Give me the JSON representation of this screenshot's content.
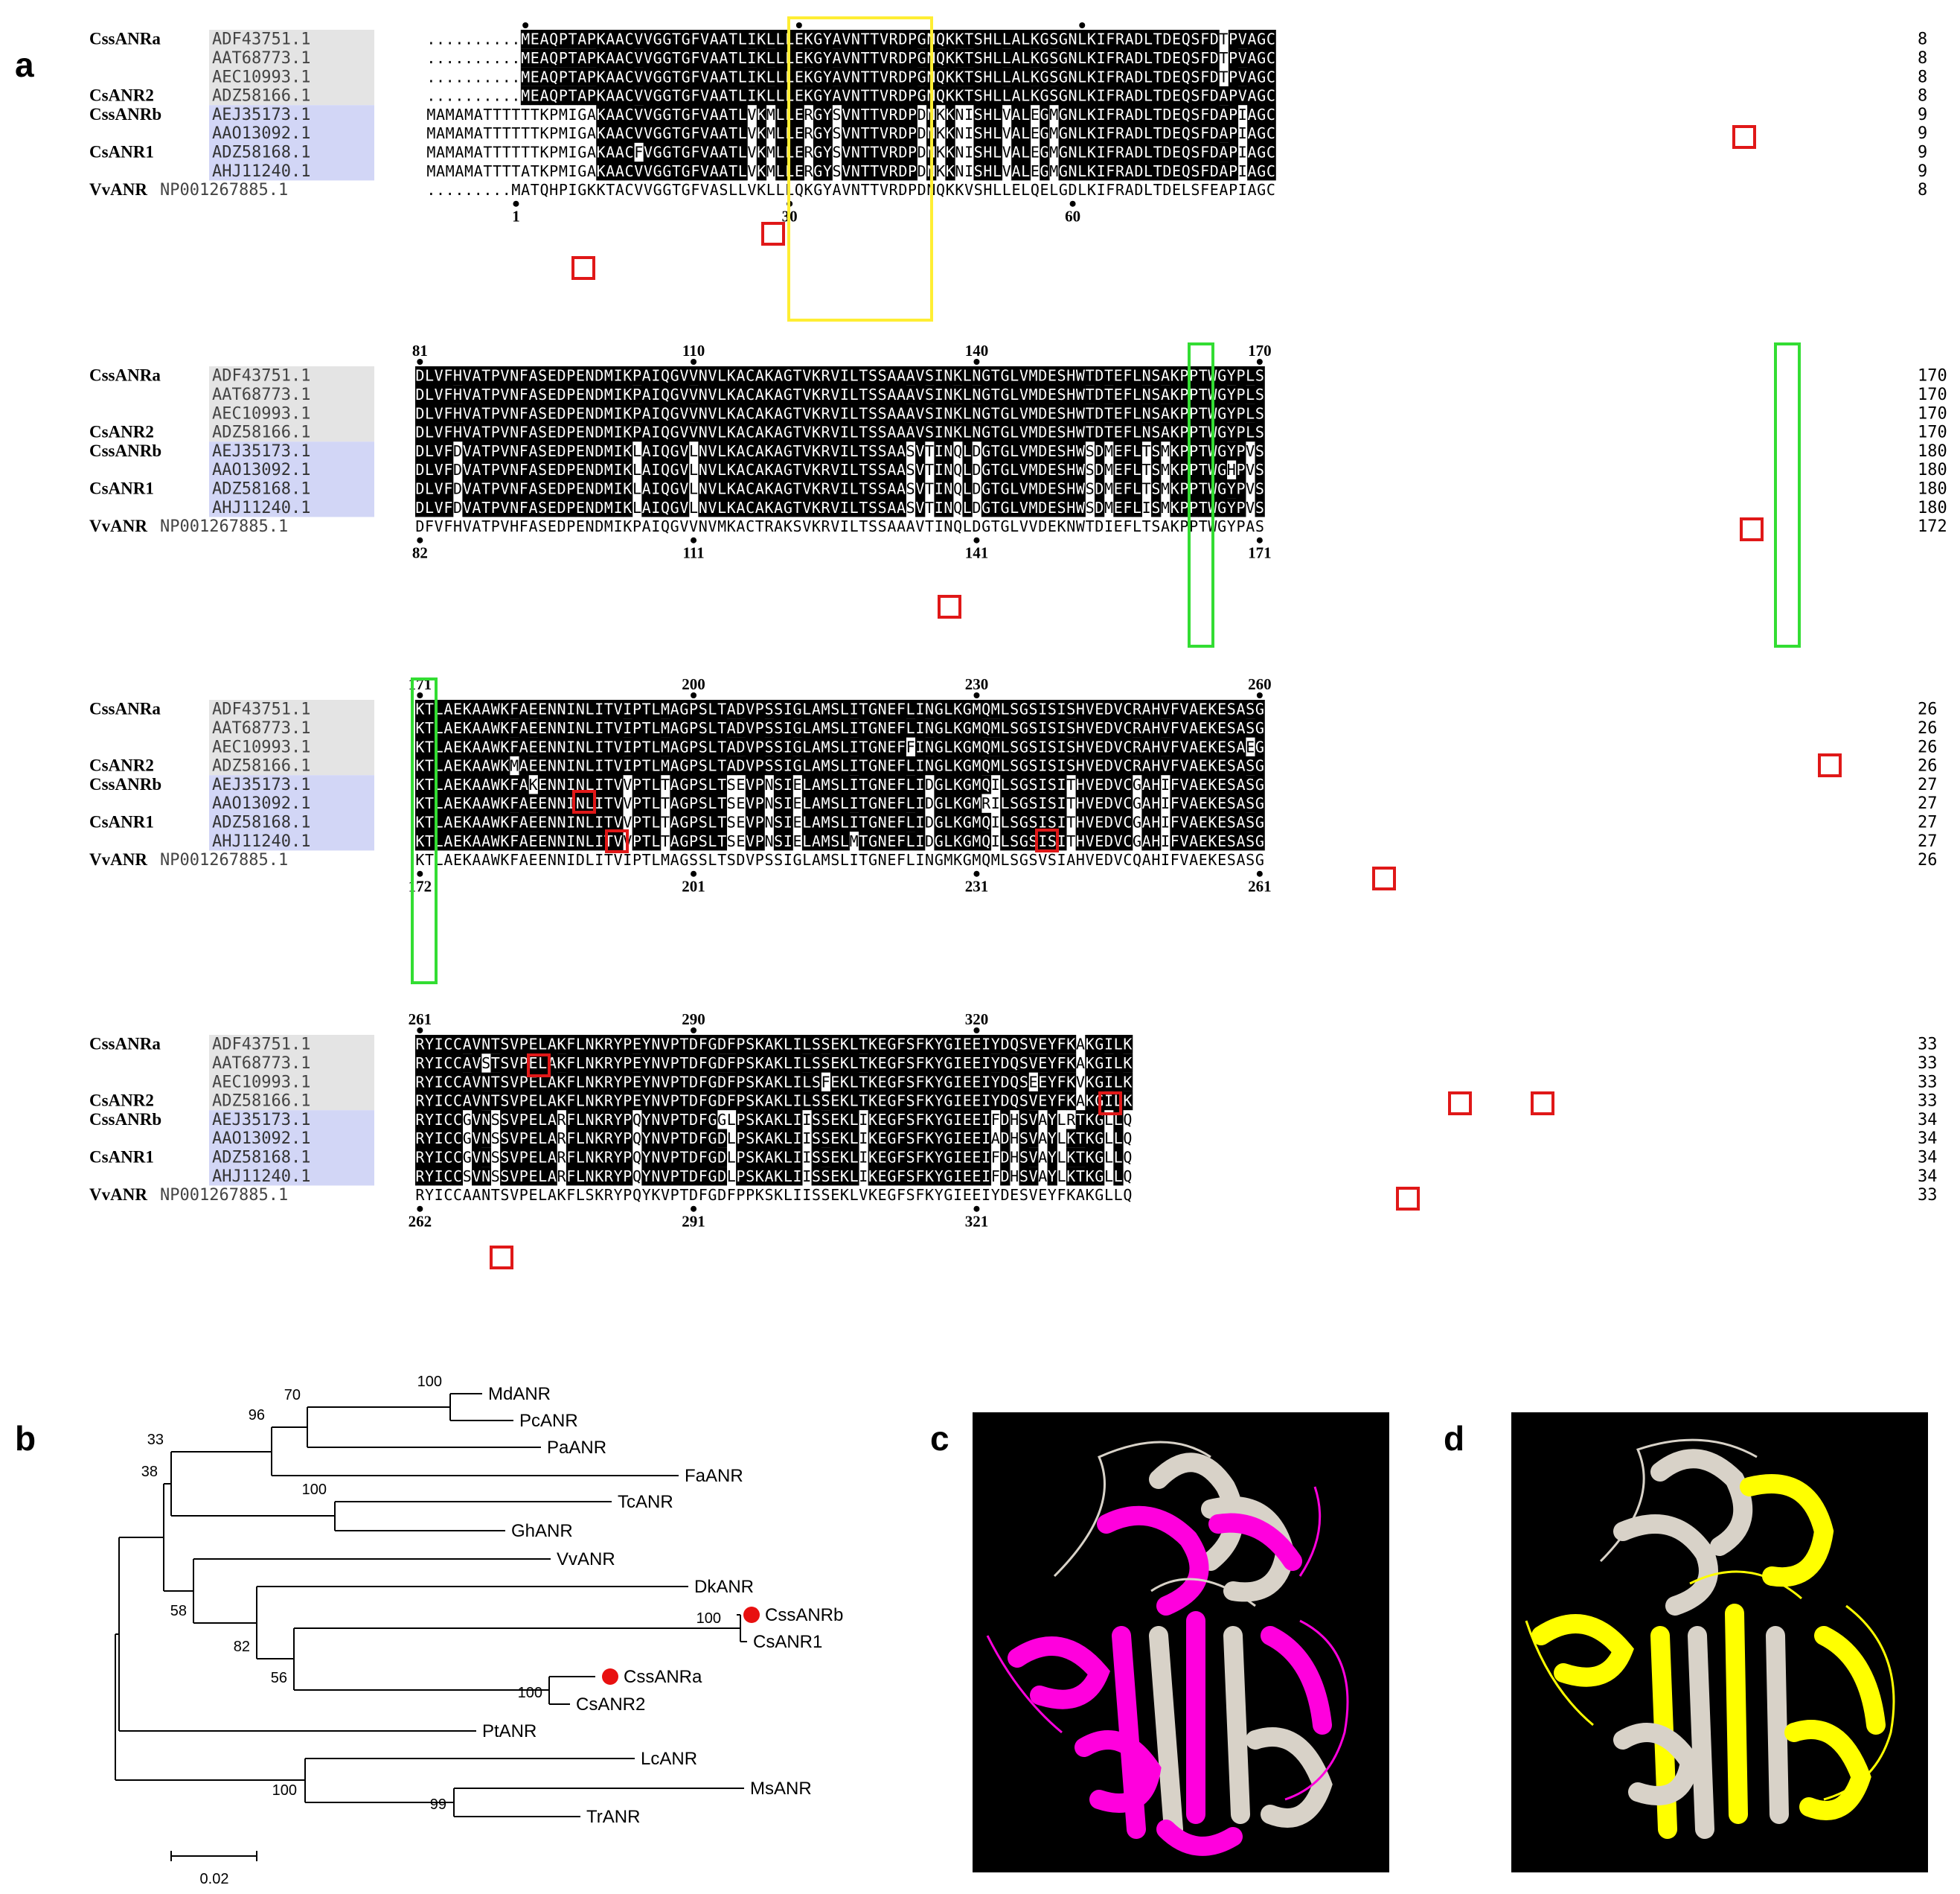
{
  "panels": {
    "a": "a",
    "b": "b",
    "c": "c",
    "d": "d"
  },
  "alignment": {
    "labels": {
      "0": "CssANRa",
      "3": "CsANR2",
      "4": "CssANRb",
      "6": "CsANR1",
      "8": "VvANR"
    },
    "accessions": [
      "ADF43751.1",
      "AAT68773.1",
      "AEC10993.1",
      "ADZ58166.1",
      "AEJ35173.1",
      "AAO13092.1",
      "ADZ58168.1",
      "AHJ11240.1",
      "NP001267885.1"
    ],
    "blocks": [
      {
        "rows": [
          "..........MEAQPTAPKAACVVGGTGFVAATLIKLLLEKGYAVNTTVRDPGNQKKTSHLLALKGSGNLKIFRADLTDEQSFDTPVAGC",
          "..........MEAQPTAPKAACVVGGTGFVAATLIKLLLEKGYAVNTTVRDPGNQKKTSHLLALKGSGNLKIFRADLTDEQSFDTPVAGC",
          "..........MEAQPTAPKAACVVGGTGFVAATLIKLLLEKGYAVNTTVRDPGNQKKTSHLLALKGSGNLKIFRADLTDEQSFDTPVAGC",
          "..........MEAQPTAPKAACVVGGTGFVAATLIKLLLEKGYAVNTTVRDPGNQKKTSHLLALKGSGNLKIFRADLTDEQSFDAPVAGC",
          "MAMAMATTTTTTKPMIGAKAACVVGGTGFVAATLVKMLLERGYSVNTTVRDPDNKKNISHLVALEGMGNLKIFRADLTDEQSFDAPIAGC",
          "MAMAMATTTTTTKPMIGAKAACVVGGTGFVAATLVKMLLERGYSVNTTVRDPDNKKNISHLVALEGMGNLKIFRADLTDEQSFDAPIAGC",
          "MAMAMATTTTTTKPMIGAKAACFVGGTGFVAATLVKMLLERGYSVNTTVRDPDNKKNISHLVALEGMGNLKIFRADLTDEQSFDAPIAGC",
          "MAMAMATTTTATKPMIGAKAACVVGGTGFVAATLVKMLLERGYSVNTTVRDPDNKKNISHLVALEGMGNLKIFRADLTDEQSFDAPIAGC",
          ".........MATQHPIGKKTACVVGGTGFVASLLVKLLLQKGYAVNTTVRDPDNQKKVSHLLELQELGDLKIFRADLTDELSFEAPIAGC"
        ],
        "ends": [
          "8",
          "8",
          "8",
          "8",
          "9",
          "9",
          "9",
          "9",
          "8"
        ],
        "top_ticks": [
          {
            "label": "",
            "col": 10
          },
          {
            "label": "",
            "col": 39
          },
          {
            "label": "",
            "col": 69
          }
        ],
        "bottom_ticks": [
          {
            "label": "1",
            "col": 9
          },
          {
            "label": "30",
            "col": 38
          },
          {
            "label": "60",
            "col": 68
          }
        ]
      },
      {
        "rows": [
          "DLVFHVATPVNFASEDPENDMIKPAIQGVVNVLKACAKAGTVKRVILTSSAAAVSINKLNGTGLVMDESHWTDTEFLNSAKPPTWGYPLS",
          "DLVFHVATPVNFASEDPENDMIKPAIQGVVNVLKACAKAGTVKRVILTSSAAAVSINKLNGTGLVMDESHWTDTEFLNSAKPPTWGYPLS",
          "DLVFHVATPVNFASEDPENDMIKPAIQGVVNVLKACAKAGTVKRVILTSSAAAVSINKLNGTGLVMDESHWTDTEFLNSAKPPTWGYPLS",
          "DLVFHVATPVNFASEDPENDMIKPAIQGVVNVLKACAKAGTVKRVILTSSAAAVSINKLNGTGLVMDESHWTDTEFLNSAKPPTWGYPLS",
          "DLVFDVATPVNFASEDPENDMIKLAIQGVLNVLKACAKAGTVKRVILTSSAASVTINQLDGTGLVMDESHWSDMEFLTSMKPPTWGYPVS",
          "DLVFDVATPVNFASEDPENDMIKLAIQGVLNVLKACAKAGTVKRVILTSSAASVTINQLDGTGLVMDESHWSDMEFLTSMKPPTWGHPVS",
          "DLVFDVATPVNFASEDPENDMIKLAIQGVLNVLKACAKAGTVKRVILTSSAASVTINQLDGTGLVMDESHWSDMEFLTSMKPPTWGYPVS",
          "DLVFDVATPVNFASEDPENDMIKLAIQGVLNVLKACAKAGTVKRVILTSSAASVTINQLDGTGLVMDESHWSDMEFLISMKPPTWGYPVS",
          "DFVFHVATPVHFASEDPENDMIKPAIQGVVNVMKACTRAKSVKRVILTSSAAAVTINQLDGTGLVVDEKNWTDIEFLTSAKPPTWGYPAS"
        ],
        "ends": [
          "170",
          "170",
          "170",
          "170",
          "180",
          "180",
          "180",
          "180",
          "172"
        ],
        "top_ticks": [
          {
            "label": "81",
            "col": 0
          },
          {
            "label": "110",
            "col": 29
          },
          {
            "label": "140",
            "col": 59
          },
          {
            "label": "170",
            "col": 89
          }
        ],
        "bottom_ticks": [
          {
            "label": "82",
            "col": 0
          },
          {
            "label": "111",
            "col": 29
          },
          {
            "label": "141",
            "col": 59
          },
          {
            "label": "171",
            "col": 89
          }
        ]
      },
      {
        "rows": [
          "KTLAEKAAWKFAEENNINLITVIPTLMAGPSLTADVPSSIGLAMSLITGNEFLINGLKGMQMLSGSISISHVEDVCRAHVFVAEKESASG",
          "KTLAEKAAWKFAEENNINLITVIPTLMAGPSLTADVPSSIGLAMSLITGNEFLINGLKGMQMLSGSISISHVEDVCRAHVFVAEKESASG",
          "KTLAEKAAWKFAEENNINLITVIPTLMAGPSLTADVPSSIGLAMSLITGNEFFINGLKGMQMLSGSISISHVEDVCRAHVFVAEKESAEG",
          "KTLAEKAAWKMAEENNINLITVIPTLMAGPSLTADVPSSIGLAMSLITGNEFLINGLKGMQMLSGSISISHVEDVCRAHVFVAEKESASG",
          "KTLAEKAAWKFAKENNINLITVVPTLTAGPSLTSEVPNSIELAMSLITGNEFLIDGLKGMQILSGSISITHVEDVCGAHIFVAEKESASG",
          "KTLAEKAAWKFAEENNINLITVVPTLTAGPSLTSEVPNSIELAMSLITGNEFLIDGLKGMRILSGSISITHVEDVCGAHIFVAEKESASG",
          "KTLAEKAAWKFAEENNINLITVVPTLTAGPSLTSEVPNSIELAMSLITGNEFLIDGLKGMQILSGSISITHVEDVCGAHIFVAEKESASG",
          "KTLAEKAAWKFAEENNINLITVVPTLTAGPSLTSEVPNSIELAMSLMTGNEFLIDGLKGMQILSGSISITHVEDVCGAHIFVAEKESASG",
          "KTLAEKAAWKFAEENNIDLITVIPTLMAGSSLTSDVPSSIGLAMSLITGNEFLINGMKGMQMLSGSVSIAHVEDVCQAHIFVAEKESASG"
        ],
        "ends": [
          "26",
          "26",
          "26",
          "26",
          "27",
          "27",
          "27",
          "27",
          "26"
        ],
        "top_ticks": [
          {
            "label": "171",
            "col": 0
          },
          {
            "label": "200",
            "col": 29
          },
          {
            "label": "230",
            "col": 59
          },
          {
            "label": "260",
            "col": 89
          }
        ],
        "bottom_ticks": [
          {
            "label": "172",
            "col": 0
          },
          {
            "label": "201",
            "col": 29
          },
          {
            "label": "231",
            "col": 59
          },
          {
            "label": "261",
            "col": 89
          }
        ]
      },
      {
        "rows": [
          "RYICCAVNTSVPELAKFLNKRYPEYNVPTDFGDFPSKAKLILSSEKLTKEGFSFKYGIEEIYDQSVEYFKAKGILK",
          "RYICCAVSTSVPELAKFLNKRYPEYNVPTDFGDFPSKAKLILSSEKLTKEGFSFKYGIEEIYDQSVEYFKAKGILK",
          "RYICCAVNTSVPELAKFLNKRYPEYNVPTDFGDFPSKAKLILSFEKLTKEGFSFKYGIEEIYDQSEEYFKVKGILK",
          "RYICCAVNTSVPELAKFLNKRYPEYNVPTDFGDFPSKAKLILSSEKLTKEGFSFKYGIEEIYDQSVEYFKAKGILK",
          "RYICCGVNSSVPELARFLNKRYPQYNVPTDFGGLPSKAKLIISSEKLIKEGFSFKYGIEEIFDHSVAYLRTKGLLQ",
          "RYICCGVNSSVPELARFLNKRYPQYNVPTDFGDLPSKAKLIISSEKLIKEGFSFKYGIEEIADHSVAYLKTKGLLQ",
          "RYICCGVNSSVPELARFLNKRYPQYNVPTDFGDLPSKAKLIISSEKLIKEGFSFKYGIEEIFDHSVAYLKTKGLLQ",
          "RYICCSVNSSVPELARFLNKRYPQYNVPTDFGDLPSKAKLIISSEKLIKEGFSFKYGIEEIFDHSVAYLKTKGLLQ",
          "RYICCAANTSVPELAKFLSKRYPQYKVPTDFGDFPPKSKLIISSEKLVKEGFSFKYGIEEIYDESVEYFKAKGLLQ"
        ],
        "ends": [
          "33",
          "33",
          "33",
          "33",
          "34",
          "34",
          "34",
          "34",
          "33"
        ],
        "top_ticks": [
          {
            "label": "261",
            "col": 0
          },
          {
            "label": "290",
            "col": 29
          },
          {
            "label": "320",
            "col": 59
          }
        ],
        "bottom_ticks": [
          {
            "label": "262",
            "col": 0
          },
          {
            "label": "291",
            "col": 29
          },
          {
            "label": "321",
            "col": 59
          }
        ]
      }
    ],
    "highlight_colors": {
      "yellow_box": "#ffee33",
      "green_box": "#33dd33",
      "red_box": "#e01818",
      "group_a": "#e4e4e4",
      "group_b": "#d2d6f6"
    }
  },
  "tree": {
    "leaves": [
      "MdANR",
      "PcANR",
      "PaANR",
      "FaANR",
      "TcANR",
      "GhANR",
      "VvANR",
      "DkANR",
      "CssANRb",
      "CsANR1",
      "CssANRa",
      "CsANR2",
      "PtANR",
      "LcANR",
      "MsANR",
      "TrANR"
    ],
    "bootstrap": [
      "100",
      "70",
      "96",
      "33",
      "100",
      "38",
      "58",
      "82",
      "100",
      "56",
      "100",
      "100",
      "99"
    ],
    "scale_label": "0.02",
    "marker_color": "#e81010"
  },
  "structures": {
    "c_color": "#ff00dd",
    "d_color": "#ffff00",
    "overlay_color": "#d8d2c8"
  }
}
